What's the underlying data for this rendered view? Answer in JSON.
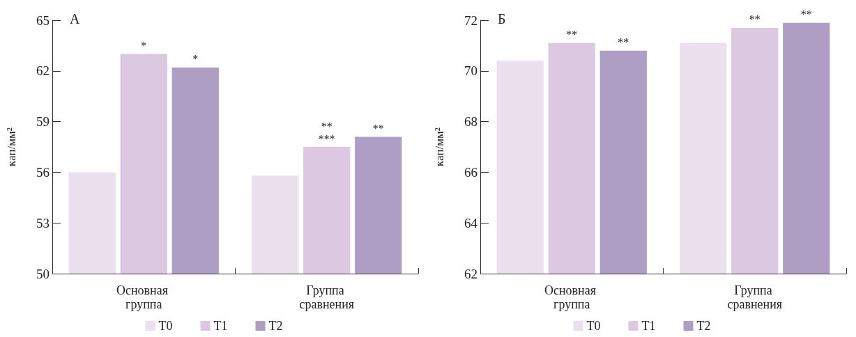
{
  "chart_data": [
    {
      "type": "bar",
      "title": "А",
      "ylabel": "кап/мм²",
      "categories": [
        "Основная группа",
        "Группа сравнения"
      ],
      "series": [
        {
          "name": "T0",
          "color": "#ebe0ee",
          "values": [
            56.0,
            55.8
          ]
        },
        {
          "name": "T1",
          "color": "#dcc8e0",
          "values": [
            63.0,
            57.5
          ],
          "value_labels": [
            "*",
            "**\n***"
          ]
        },
        {
          "name": "T2",
          "color": "#ae9ec4",
          "values": [
            62.2,
            58.1
          ],
          "value_labels": [
            "*",
            "**"
          ]
        }
      ],
      "ylim": [
        50,
        65
      ],
      "yticks": [
        50,
        53,
        56,
        59,
        62,
        65
      ],
      "grid": false,
      "legend": "bottom"
    },
    {
      "type": "bar",
      "title": "Б",
      "ylabel": "кап/мм²",
      "categories": [
        "Основная группа",
        "Группа сравнения"
      ],
      "series": [
        {
          "name": "T0",
          "color": "#ebe0ee",
          "values": [
            70.4,
            71.1
          ]
        },
        {
          "name": "T1",
          "color": "#dcc8e0",
          "values": [
            71.1,
            71.7
          ],
          "value_labels": [
            "**",
            "**"
          ]
        },
        {
          "name": "T2",
          "color": "#ae9ec4",
          "values": [
            70.8,
            71.9
          ],
          "value_labels": [
            "**",
            "**"
          ]
        }
      ],
      "ylim": [
        62,
        72
      ],
      "yticks": [
        62,
        64,
        66,
        68,
        70,
        72
      ],
      "grid": false,
      "legend": "bottom"
    }
  ]
}
